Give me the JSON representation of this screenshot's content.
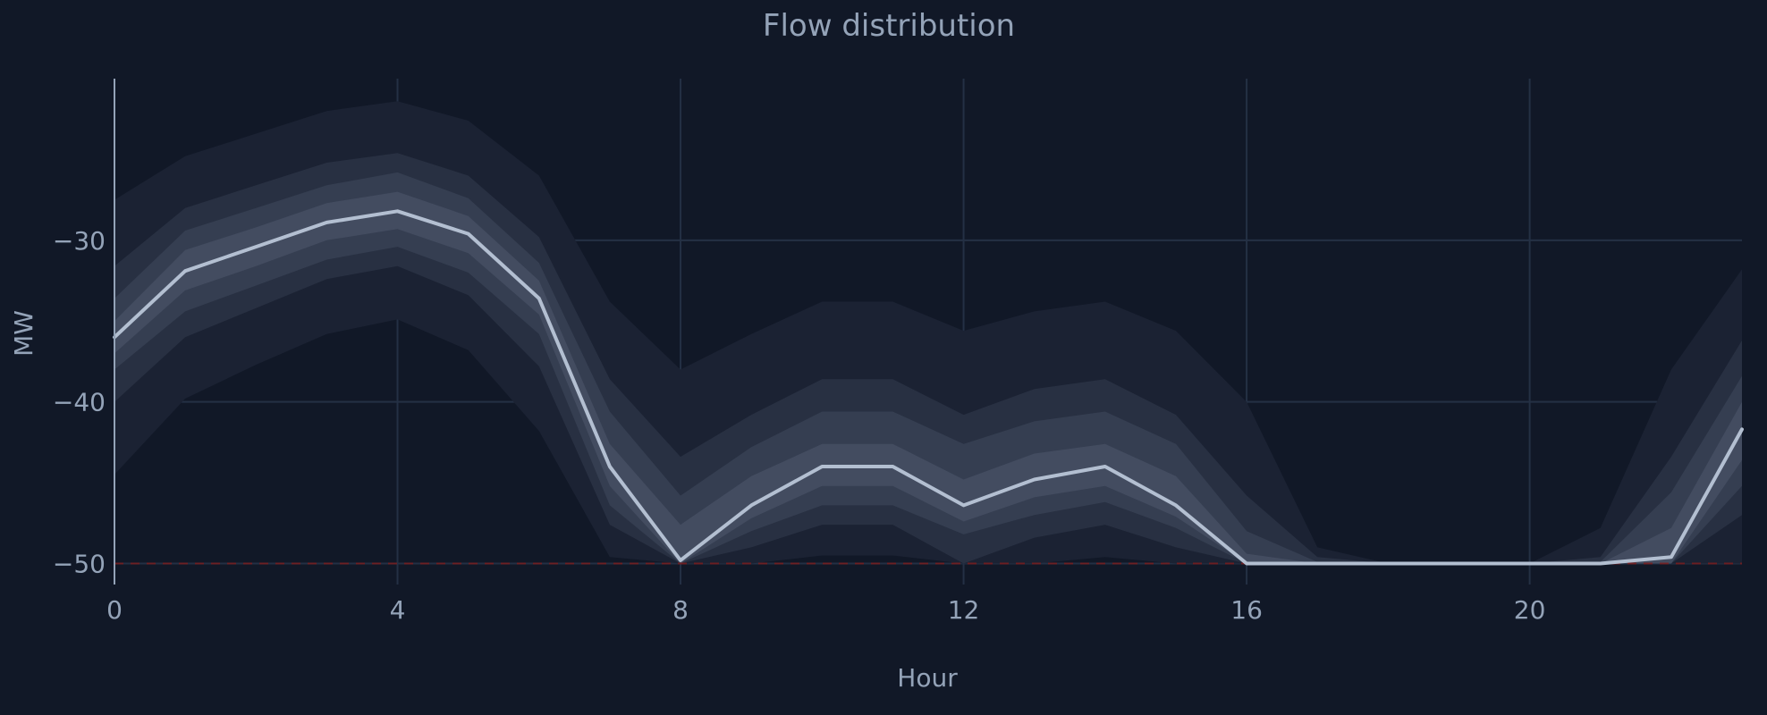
{
  "chart_data": {
    "type": "area",
    "title": "Flow distribution",
    "xlabel": "Hour",
    "ylabel": "MW",
    "xlim": [
      0,
      23
    ],
    "ylim": [
      -51.3,
      -20
    ],
    "x_ticks": [
      0,
      4,
      8,
      12,
      16,
      20
    ],
    "x_tick_labels": [
      "0",
      "4",
      "8",
      "12",
      "16",
      "20"
    ],
    "y_ticks": [
      -30,
      -40,
      -50
    ],
    "y_tick_labels": [
      "−30",
      "−40",
      "−50"
    ],
    "grid": true,
    "legend": "none",
    "reference_line": {
      "y": -50,
      "style": "dashed",
      "color": "#7f1d1d"
    },
    "x": [
      0,
      1,
      2,
      3,
      4,
      5,
      6,
      7,
      8,
      9,
      10,
      11,
      12,
      13,
      14,
      15,
      16,
      17,
      18,
      19,
      20,
      21,
      22,
      23
    ],
    "median": [
      -36.0,
      -31.9,
      -30.4,
      -28.9,
      -28.2,
      -29.6,
      -33.6,
      -44.0,
      -49.8,
      -46.4,
      -44.0,
      -44.0,
      -46.4,
      -44.8,
      -44.0,
      -46.4,
      -50.0,
      -50.0,
      -50.0,
      -50.0,
      -50.0,
      -50.0,
      -49.6,
      -41.7
    ],
    "bands": [
      {
        "lower": [
          -44.5,
          -39.8,
          -37.7,
          -35.8,
          -34.9,
          -36.8,
          -41.8,
          -49.6,
          -50.0,
          -50.0,
          -49.5,
          -49.5,
          -50.0,
          -50.0,
          -49.6,
          -50.0,
          -50.0,
          -50.0,
          -50.0,
          -50.0,
          -50.0,
          -50.0,
          -50.0,
          -50.0
        ],
        "upper": [
          -27.5,
          -24.8,
          -23.4,
          -22.0,
          -21.4,
          -22.6,
          -26.0,
          -33.8,
          -38.0,
          -35.8,
          -33.8,
          -33.8,
          -35.6,
          -34.4,
          -33.8,
          -35.6,
          -40.0,
          -49.0,
          -50.0,
          -50.0,
          -50.0,
          -47.8,
          -38.0,
          -31.8
        ]
      },
      {
        "lower": [
          -40.0,
          -36.0,
          -34.2,
          -32.4,
          -31.6,
          -33.4,
          -37.8,
          -47.6,
          -50.0,
          -49.0,
          -47.6,
          -47.6,
          -50.0,
          -48.4,
          -47.6,
          -49.0,
          -50.0,
          -50.0,
          -50.0,
          -50.0,
          -50.0,
          -50.0,
          -50.0,
          -47.0
        ],
        "upper": [
          -31.6,
          -28.0,
          -26.6,
          -25.2,
          -24.6,
          -26.0,
          -29.8,
          -38.6,
          -43.4,
          -40.8,
          -38.6,
          -38.6,
          -40.8,
          -39.2,
          -38.6,
          -40.8,
          -45.8,
          -49.6,
          -50.0,
          -50.0,
          -50.0,
          -49.6,
          -43.4,
          -36.2
        ]
      },
      {
        "lower": [
          -38.0,
          -34.4,
          -32.8,
          -31.2,
          -30.4,
          -32.0,
          -35.8,
          -46.4,
          -50.0,
          -48.0,
          -46.4,
          -46.4,
          -48.2,
          -47.0,
          -46.2,
          -47.8,
          -50.0,
          -50.0,
          -50.0,
          -50.0,
          -50.0,
          -50.0,
          -50.0,
          -45.2
        ],
        "upper": [
          -33.6,
          -29.4,
          -28.0,
          -26.6,
          -25.8,
          -27.4,
          -31.4,
          -40.6,
          -45.8,
          -42.8,
          -40.6,
          -40.6,
          -42.6,
          -41.2,
          -40.6,
          -42.6,
          -48.0,
          -49.9,
          -50.0,
          -50.0,
          -50.0,
          -49.9,
          -45.6,
          -38.4
        ]
      },
      {
        "lower": [
          -37.0,
          -33.1,
          -31.6,
          -30.0,
          -29.3,
          -30.8,
          -34.6,
          -45.2,
          -50.0,
          -47.2,
          -45.2,
          -45.2,
          -47.4,
          -45.9,
          -45.2,
          -47.1,
          -50.0,
          -50.0,
          -50.0,
          -50.0,
          -50.0,
          -50.0,
          -50.0,
          -43.6
        ],
        "upper": [
          -35.0,
          -30.6,
          -29.2,
          -27.7,
          -27.0,
          -28.5,
          -32.5,
          -42.6,
          -47.6,
          -44.6,
          -42.6,
          -42.6,
          -44.8,
          -43.2,
          -42.6,
          -44.6,
          -49.4,
          -50.0,
          -50.0,
          -50.0,
          -50.0,
          -50.0,
          -47.8,
          -40.0
        ]
      }
    ]
  }
}
